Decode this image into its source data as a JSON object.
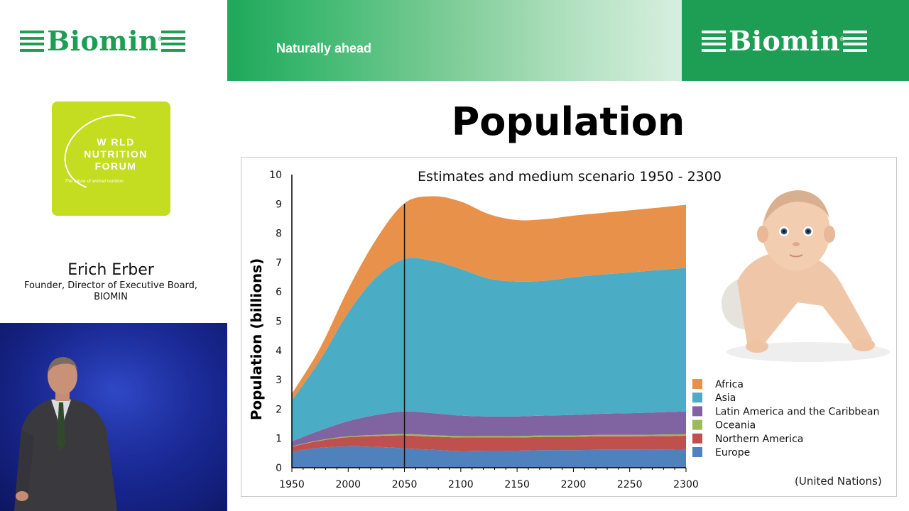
{
  "header": {
    "brand_left": "Biomin",
    "brand_right": "Biomin",
    "registered_mark": "®",
    "tagline": "Naturally ahead",
    "colors": {
      "brand_green": "#1e9e55",
      "gradient_end": "#d7efdf"
    }
  },
  "event_logo": {
    "lines": [
      "W RLD",
      "NUTRITION",
      "FORUM"
    ],
    "subtitle": "The future of animal nutrition.",
    "color": "#c4dd20"
  },
  "speaker": {
    "name": "Erich Erber",
    "role_line1": "Founder, Director of Executive Board,",
    "role_line2": "BIOMIN"
  },
  "slide": {
    "title": "Population",
    "source": "(United Nations)",
    "image": "baby-photo"
  },
  "chart_data": {
    "type": "area",
    "stacked": true,
    "title": "Estimates and medium scenario 1950 - 2300",
    "xlabel": "",
    "ylabel": "Population (billions)",
    "xlim": [
      1950,
      2300
    ],
    "ylim": [
      0,
      10
    ],
    "x": [
      1950,
      1975,
      2000,
      2025,
      2050,
      2075,
      2100,
      2125,
      2150,
      2175,
      2200,
      2225,
      2250,
      2275,
      2300
    ],
    "x_ticks": [
      1950,
      2000,
      2050,
      2100,
      2150,
      2200,
      2250,
      2300
    ],
    "y_ticks": [
      0,
      1,
      2,
      3,
      4,
      5,
      6,
      7,
      8,
      9,
      10
    ],
    "marker_line_x": 2050,
    "legend_position": "bottom-right",
    "series": [
      {
        "name": "Europe",
        "color": "#4f81bd",
        "values": [
          0.55,
          0.68,
          0.73,
          0.71,
          0.66,
          0.61,
          0.57,
          0.58,
          0.58,
          0.6,
          0.6,
          0.61,
          0.61,
          0.61,
          0.62
        ]
      },
      {
        "name": "Northern America",
        "color": "#c0504d",
        "values": [
          0.17,
          0.24,
          0.31,
          0.37,
          0.44,
          0.45,
          0.46,
          0.45,
          0.45,
          0.45,
          0.45,
          0.46,
          0.46,
          0.47,
          0.47
        ]
      },
      {
        "name": "Oceania",
        "color": "#9bbb59",
        "values": [
          0.01,
          0.02,
          0.03,
          0.04,
          0.05,
          0.05,
          0.05,
          0.05,
          0.05,
          0.05,
          0.05,
          0.05,
          0.05,
          0.05,
          0.05
        ]
      },
      {
        "name": "Latin America and the Caribbean",
        "color": "#8064a2",
        "values": [
          0.17,
          0.33,
          0.52,
          0.68,
          0.77,
          0.75,
          0.7,
          0.67,
          0.67,
          0.68,
          0.7,
          0.72,
          0.74,
          0.76,
          0.78
        ]
      },
      {
        "name": "Asia",
        "color": "#4bacc6",
        "values": [
          1.4,
          2.4,
          3.7,
          4.7,
          5.2,
          5.2,
          5.0,
          4.7,
          4.6,
          4.6,
          4.7,
          4.75,
          4.8,
          4.85,
          4.9
        ]
      },
      {
        "name": "Africa",
        "color": "#e8914a",
        "values": [
          0.22,
          0.41,
          0.8,
          1.3,
          1.9,
          2.2,
          2.3,
          2.2,
          2.1,
          2.1,
          2.1,
          2.1,
          2.12,
          2.13,
          2.15
        ]
      }
    ]
  }
}
